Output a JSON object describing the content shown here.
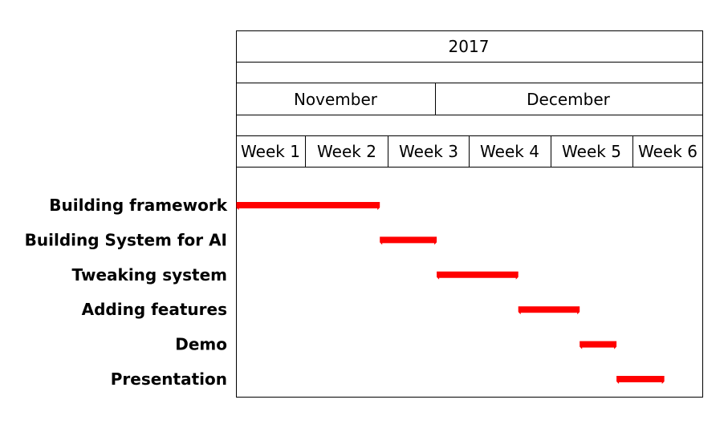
{
  "chart_data": {
    "type": "gantt",
    "title_elements": {
      "year": "2017",
      "months": [
        "November",
        "December"
      ],
      "weeks": [
        "Week 1",
        "Week 2",
        "Week 3",
        "Week 4",
        "Week 5",
        "Week 6"
      ]
    },
    "tasks": [
      {
        "name": "Building framework",
        "start": 1.0,
        "end": 2.9
      },
      {
        "name": "Building System for AI",
        "start": 2.9,
        "end": 3.6
      },
      {
        "name": "Tweaking system",
        "start": 3.6,
        "end": 4.6
      },
      {
        "name": "Adding features",
        "start": 4.6,
        "end": 5.35
      },
      {
        "name": "Demo",
        "start": 5.35,
        "end": 5.8
      },
      {
        "name": "Presentation",
        "start": 5.8,
        "end": 6.45
      }
    ],
    "bar_color": "#ff0000",
    "grid": false
  }
}
